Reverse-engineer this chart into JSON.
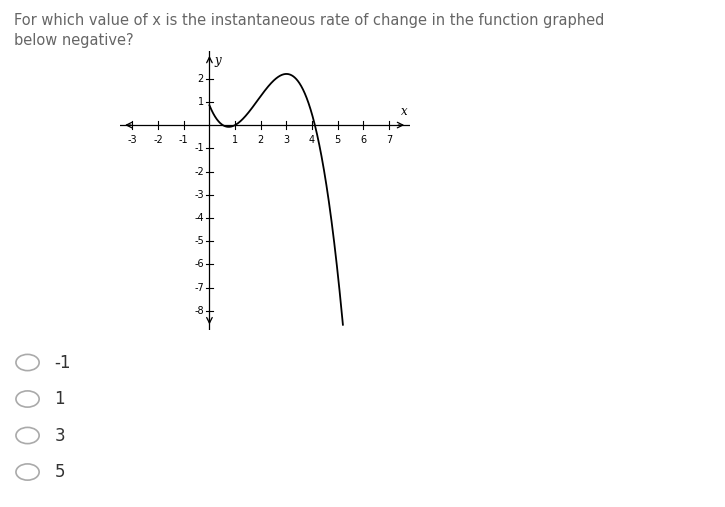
{
  "title_line1": "For which value of x is the instantaneous rate of change in the function graphed",
  "title_line2": "below negative?",
  "title_fontsize": 10.5,
  "title_color": "#666666",
  "bg_color": "#ffffff",
  "curve_color": "#000000",
  "axis_color": "#000000",
  "xlim": [
    -3.5,
    7.8
  ],
  "ylim": [
    -8.8,
    3.2
  ],
  "xticks": [
    -3,
    -2,
    -1,
    1,
    2,
    3,
    4,
    5,
    6,
    7
  ],
  "yticks": [
    -8,
    -7,
    -6,
    -5,
    -4,
    -3,
    -2,
    -1,
    1,
    2
  ],
  "xlabel": "x",
  "ylabel": "y",
  "curve_a": -0.4,
  "curve_b": 2.25,
  "curve_c": -2.7,
  "curve_d": 0.85,
  "curve_xmin": 0.0,
  "curve_xmax": 5.2,
  "choices": [
    "-1",
    "1",
    "3",
    "5"
  ],
  "choice_fontsize": 12,
  "choice_color": "#333333",
  "circle_color": "#aaaaaa"
}
